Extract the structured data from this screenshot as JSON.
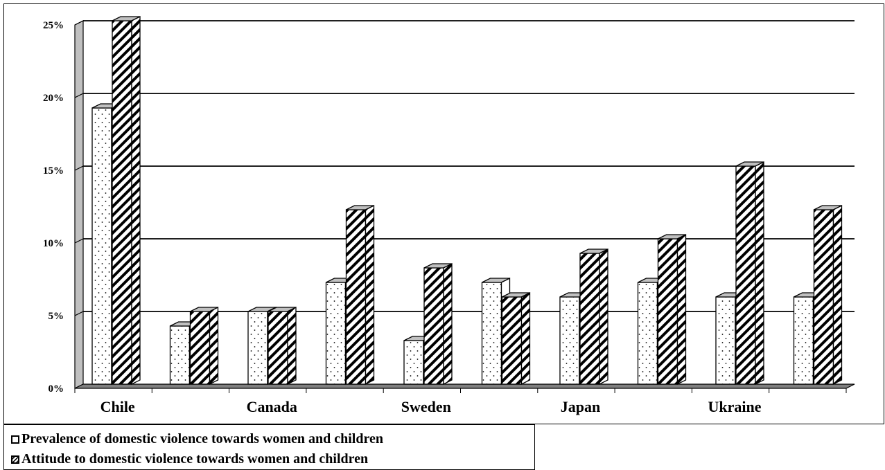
{
  "chart_data": {
    "type": "bar",
    "categories": [
      "Chile",
      "",
      "Canada",
      "",
      "Sweden",
      "",
      "Japan",
      "",
      "Ukraine",
      ""
    ],
    "series": [
      {
        "name": "Prevalence of domestic violence towards women and children",
        "values": [
          19,
          4,
          5,
          7,
          3,
          7,
          6,
          7,
          6,
          6
        ]
      },
      {
        "name": "Attitude to domestic violence towards women and children",
        "values": [
          25,
          5,
          5,
          12,
          8,
          6,
          9,
          10,
          15,
          12
        ]
      }
    ],
    "ylim": [
      0,
      25
    ],
    "yticks": [
      0,
      5,
      10,
      15,
      20,
      25
    ],
    "ytick_labels": [
      "0%",
      "5%",
      "10%",
      "15%",
      "20%",
      "25%"
    ],
    "title": "",
    "xlabel": "",
    "ylabel": "",
    "grid": true,
    "legend_position": "bottom-left",
    "style": "3d-clustered-column",
    "series_patterns": [
      "dotted",
      "diagonal-hatch"
    ]
  }
}
